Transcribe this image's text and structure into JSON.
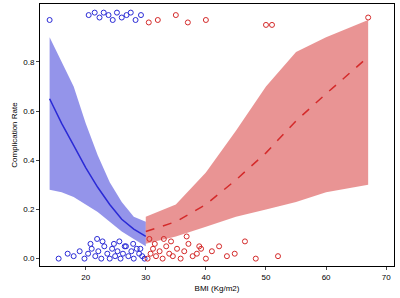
{
  "chart_data": {
    "type": "scatter",
    "x_label": "BMI (Kg/m2)",
    "y_label": "Complication Rate",
    "xlim": [
      12.4,
      71.3
    ],
    "xticks": [
      20,
      30,
      40,
      50,
      60,
      70
    ],
    "ylim": [
      -0.03,
      1.035
    ],
    "yticks": [
      {
        "value": 0,
        "label": "0.0"
      },
      0.2,
      0.4,
      0.6,
      0.8
    ],
    "grid": false,
    "series": [
      {
        "type": "scatter",
        "color": "#2a2ad6",
        "marker": "circle-open",
        "x": [
          14,
          20.5,
          21.5,
          22.3,
          23,
          23.8,
          24.5,
          25.2,
          26,
          26.8,
          27.5,
          28.3,
          29.2,
          15.5,
          17,
          18,
          19,
          19.8,
          20.4,
          21,
          21.6,
          22.1,
          22.6,
          23.1,
          23.6,
          24,
          24.4,
          24.9,
          25.3,
          25.8,
          26.2,
          26.7,
          27.1,
          27.6,
          28,
          28.5,
          28.9,
          29.4,
          29.8,
          20.8,
          22.8,
          24.7,
          26.5,
          27.9,
          29.1,
          21.9,
          25.6
        ],
        "values": [
          0.97,
          0.99,
          1.0,
          0.98,
          1.0,
          0.99,
          0.97,
          1.0,
          0.98,
          0.99,
          1.0,
          0.97,
          0.99,
          0.0,
          0.02,
          0.01,
          0.03,
          0.0,
          0.02,
          0.04,
          0.01,
          0.03,
          0.0,
          0.05,
          0.02,
          0.0,
          0.04,
          0.01,
          0.03,
          0.0,
          0.02,
          0.05,
          0.01,
          0.03,
          0.0,
          0.04,
          0.02,
          0.01,
          0.0,
          0.06,
          0.07,
          0.06,
          0.05,
          0.06,
          0.04,
          0.08,
          0.07
        ]
      },
      {
        "type": "scatter",
        "color": "#d42a2a",
        "marker": "circle-open",
        "x": [
          30.5,
          32,
          35,
          37,
          40,
          50,
          51,
          67,
          30.3,
          30.8,
          31.2,
          31.7,
          32.3,
          32.8,
          33.4,
          33.9,
          34.5,
          35.2,
          35.8,
          36.4,
          37.1,
          37.8,
          38.5,
          39.2,
          40,
          41,
          42.2,
          43.5,
          44.8,
          46.5,
          48.3,
          52,
          31.5,
          33,
          34.2,
          36.8,
          38.9,
          30.6
        ],
        "values": [
          0.96,
          0.97,
          0.99,
          0.96,
          0.97,
          0.95,
          0.95,
          0.98,
          0.0,
          0.02,
          0.04,
          0.01,
          0.03,
          0.0,
          0.05,
          0.02,
          0.01,
          0.04,
          0.0,
          0.03,
          0.06,
          0.01,
          0.02,
          0.04,
          0.0,
          0.03,
          0.05,
          0.01,
          0.02,
          0.07,
          0.0,
          0.01,
          0.06,
          0.08,
          0.07,
          0.09,
          0.05,
          0.08
        ]
      },
      {
        "type": "line",
        "color": "#2a2ad6",
        "line_style": "solid",
        "x": [
          14,
          16,
          18,
          20,
          22,
          24,
          26,
          28,
          30
        ],
        "values": [
          0.65,
          0.55,
          0.46,
          0.37,
          0.29,
          0.22,
          0.16,
          0.12,
          0.09
        ],
        "lower": [
          0.28,
          0.27,
          0.25,
          0.22,
          0.19,
          0.15,
          0.11,
          0.08,
          0.05
        ],
        "upper": [
          0.9,
          0.8,
          0.7,
          0.55,
          0.42,
          0.31,
          0.23,
          0.17,
          0.15
        ]
      },
      {
        "type": "line",
        "color": "#d42a2a",
        "line_style": "dash",
        "x": [
          30,
          35,
          40,
          45,
          50,
          55,
          60,
          67
        ],
        "values": [
          0.11,
          0.15,
          0.22,
          0.32,
          0.43,
          0.56,
          0.67,
          0.82
        ],
        "lower": [
          0.06,
          0.09,
          0.13,
          0.17,
          0.2,
          0.23,
          0.27,
          0.3
        ],
        "upper": [
          0.17,
          0.22,
          0.35,
          0.52,
          0.7,
          0.84,
          0.9,
          0.97
        ]
      }
    ]
  }
}
